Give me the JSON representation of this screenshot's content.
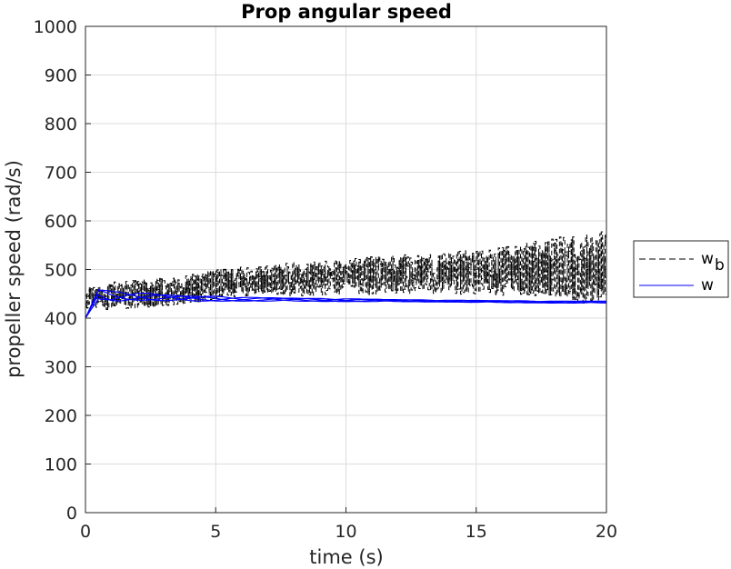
{
  "chart_data": {
    "type": "line",
    "title": "Prop angular speed",
    "xlabel": "time (s)",
    "ylabel": "propeller speed (rad/s)",
    "xlim": [
      0,
      20
    ],
    "ylim": [
      0,
      1000
    ],
    "xticks": [
      0,
      5,
      10,
      15,
      20
    ],
    "yticks": [
      0,
      100,
      200,
      300,
      400,
      500,
      600,
      700,
      800,
      900,
      1000
    ],
    "grid": true,
    "legend_position": "outside-right",
    "legend": [
      {
        "label": "w",
        "subscript": "b",
        "style": "dashed",
        "color": "#000000"
      },
      {
        "label": "w",
        "subscript": "",
        "style": "solid",
        "color": "#0000ff"
      }
    ],
    "series": [
      {
        "name": "w_b",
        "color": "#000000",
        "style": "dashed-step",
        "x": [
          0,
          1,
          2,
          3,
          4,
          5,
          6,
          7,
          8,
          9,
          10,
          11,
          12,
          13,
          14,
          15,
          16,
          17,
          18,
          19,
          20
        ],
        "y": [
          440,
          445,
          450,
          455,
          460,
          470,
          475,
          478,
          480,
          482,
          485,
          488,
          490,
          492,
          493,
          495,
          497,
          500,
          510,
          500,
          510
        ],
        "band": [
          20,
          30,
          30,
          30,
          30,
          30,
          30,
          30,
          35,
          35,
          35,
          40,
          40,
          40,
          45,
          45,
          50,
          55,
          65,
          70,
          70
        ]
      },
      {
        "name": "w",
        "color": "#0000ff",
        "style": "solid",
        "x": [
          0,
          0.5,
          1,
          2,
          3,
          4,
          5,
          6,
          8,
          10,
          12,
          14,
          16,
          18,
          20
        ],
        "y": [
          400,
          450,
          445,
          445,
          442,
          440,
          440,
          439,
          438,
          437,
          436,
          435,
          434,
          433,
          433
        ],
        "band": [
          0,
          10,
          10,
          8,
          6,
          5,
          5,
          4,
          3,
          3,
          2,
          2,
          2,
          2,
          2
        ]
      }
    ]
  }
}
